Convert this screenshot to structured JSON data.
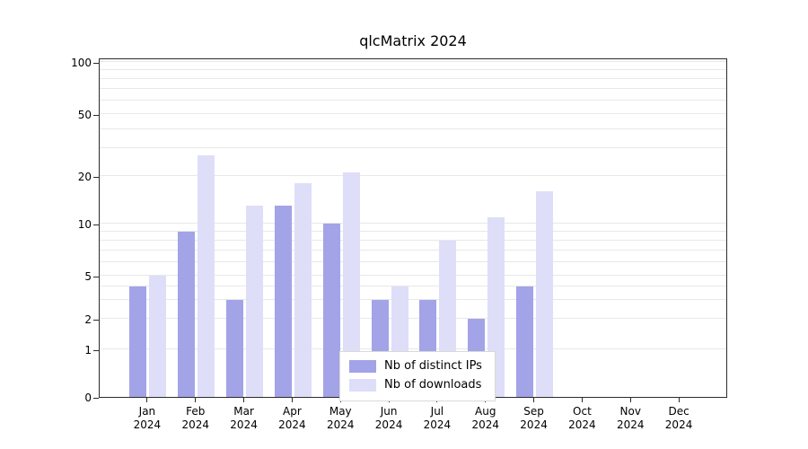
{
  "figure": {
    "title": "qlcMatrix 2024"
  },
  "chart_data": {
    "type": "bar",
    "title": "qlcMatrix 2024",
    "xlabel": "",
    "ylabel": "",
    "year_label": "2024",
    "categories": [
      "Jan",
      "Feb",
      "Mar",
      "Apr",
      "May",
      "Jun",
      "Jul",
      "Aug",
      "Sep",
      "Oct",
      "Nov",
      "Dec"
    ],
    "series": [
      {
        "name": "Nb of distinct IPs",
        "color": "#a3a3e8",
        "values": [
          4,
          9,
          3,
          13,
          10,
          3,
          3,
          2,
          4,
          0,
          0,
          0
        ]
      },
      {
        "name": "Nb of downloads",
        "color": "#dedef8",
        "values": [
          5,
          27,
          13,
          18,
          21,
          4,
          8,
          11,
          16,
          0,
          0,
          0
        ]
      }
    ],
    "yticks": [
      0,
      1,
      2,
      5,
      10,
      20,
      50,
      100
    ],
    "ylim": [
      0,
      100
    ],
    "scale": "log-like",
    "grid": true,
    "legend_position": "bottom-center",
    "gridline_values": [
      1,
      2,
      3,
      4,
      5,
      6,
      7,
      8,
      9,
      10,
      20,
      30,
      40,
      50,
      60,
      70,
      80,
      90,
      100
    ]
  }
}
